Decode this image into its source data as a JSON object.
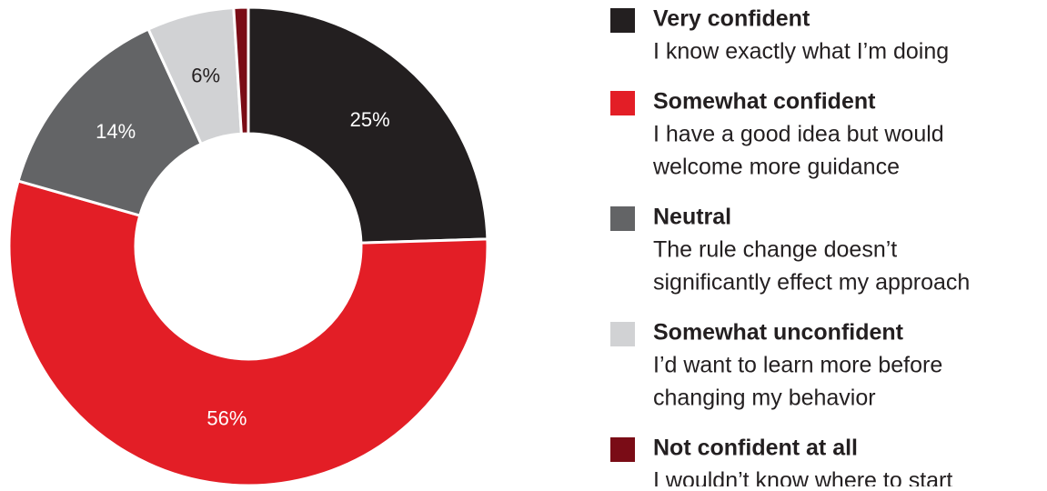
{
  "chart_data": {
    "type": "donut",
    "categories": [
      "Very confident",
      "Somewhat confident",
      "Neutral",
      "Somewhat unconfident",
      "Not confident at all"
    ],
    "descriptions": [
      [
        "I know exactly what I’m doing"
      ],
      [
        "I have a good idea but would",
        "welcome more guidance"
      ],
      [
        "The rule change doesn’t",
        "significantly effect my approach"
      ],
      [
        "I’d want to learn more before",
        "changing my behavior"
      ],
      [
        "I wouldn’t know where to start"
      ]
    ],
    "values": [
      25,
      56,
      14,
      6,
      1
    ],
    "value_labels": [
      "25%",
      "56%",
      "14%",
      "6%",
      null
    ],
    "colors": [
      "#231f20",
      "#e31e26",
      "#636466",
      "#d1d2d4",
      "#7a0c16"
    ],
    "label_colors": [
      "#ffffff",
      "#ffffff",
      "#ffffff",
      "#231f20",
      "#ffffff"
    ]
  }
}
